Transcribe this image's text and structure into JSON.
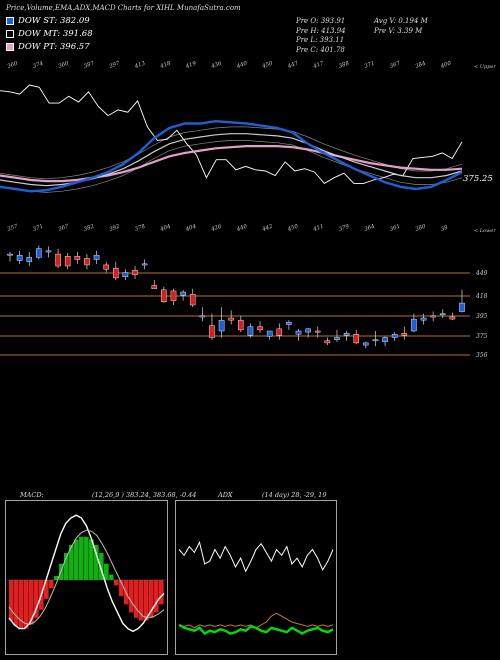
{
  "header": {
    "title": "Price,Volume,EMA,ADX,MACD Charts for XIHL MunafaSutra.com",
    "legend": [
      {
        "label": "DOW ST: 382.09",
        "color": "#1f5fd6"
      },
      {
        "label": "DOW MT: 391.68",
        "color": "#ffffff"
      },
      {
        "label": "DOW PT: 396.57",
        "color": "#e0a0c8"
      }
    ],
    "stats_left": [
      "Pre  O: 393.91",
      "Pre  H: 413.94",
      "Pre  L: 393.11",
      "Pre  C: 401.78"
    ],
    "stats_right": [
      "Avg V: 0.194  M",
      "Pre  V: 3.39  M"
    ]
  },
  "ema_panel": {
    "upper_label": "< Upper",
    "lower_label": "< Lower",
    "price_tag": "375.25",
    "top_ticks": [
      "360",
      "374",
      "360",
      "387",
      "397",
      "413",
      "418",
      "419",
      "436",
      "440",
      "450",
      "447",
      "417",
      "388",
      "371",
      "367",
      "384",
      "400"
    ],
    "bottom_ticks": [
      "357",
      "371",
      "367",
      "382",
      "392",
      "378",
      "404",
      "404",
      "426",
      "440",
      "442",
      "450",
      "411",
      "379",
      "364",
      "361",
      "380",
      "38"
    ]
  },
  "candle_panel": {
    "levels": [
      "449",
      "418",
      "395",
      "375",
      "356"
    ]
  },
  "macd_panel": {
    "label": "MACD:",
    "values": "(12,26,9 ) 383.24,  383.68,  -0.44",
    "adx_label": "ADX",
    "adx_values": "(14 day) 28,  -29,  19"
  },
  "chart_data": [
    {
      "type": "line",
      "title": "",
      "series": [
        {
          "name": "DOW ST",
          "color": "#1f5fd6",
          "values": [
            362,
            360,
            358,
            359,
            362,
            366,
            370,
            375,
            382,
            392,
            405,
            414,
            418,
            418,
            420,
            419,
            418,
            416,
            414,
            410,
            400,
            392,
            385,
            378,
            372,
            366,
            362,
            360,
            362,
            368,
            375
          ]
        },
        {
          "name": "DOW MT",
          "color": "#ffffff",
          "values": [
            368,
            366,
            364,
            363,
            364,
            366,
            369,
            373,
            378,
            385,
            393,
            400,
            404,
            406,
            408,
            409,
            409,
            408,
            407,
            405,
            400,
            394,
            389,
            384,
            380,
            376,
            372,
            370,
            370,
            372,
            376
          ]
        },
        {
          "name": "DOW PT",
          "color": "#e0a0c8",
          "values": [
            372,
            370,
            368,
            367,
            367,
            368,
            370,
            372,
            375,
            379,
            384,
            389,
            392,
            394,
            396,
            397,
            398,
            398,
            398,
            397,
            395,
            392,
            389,
            386,
            383,
            381,
            379,
            378,
            377,
            377,
            378
          ]
        }
      ]
    },
    {
      "type": "candlestick",
      "title": "",
      "ylim": [
        340,
        460
      ],
      "candles": [
        {
          "o": 446,
          "h": 449,
          "l": 440,
          "c": 447
        },
        {
          "o": 441,
          "h": 450,
          "l": 438,
          "c": 446
        },
        {
          "o": 440,
          "h": 449,
          "l": 436,
          "c": 444
        },
        {
          "o": 444,
          "h": 455,
          "l": 442,
          "c": 452
        },
        {
          "o": 449,
          "h": 454,
          "l": 444,
          "c": 450
        },
        {
          "o": 447,
          "h": 452,
          "l": 434,
          "c": 436
        },
        {
          "o": 445,
          "h": 448,
          "l": 433,
          "c": 436
        },
        {
          "o": 445,
          "h": 449,
          "l": 438,
          "c": 442
        },
        {
          "o": 443,
          "h": 447,
          "l": 433,
          "c": 437
        },
        {
          "o": 442,
          "h": 450,
          "l": 438,
          "c": 446
        },
        {
          "o": 437,
          "h": 440,
          "l": 430,
          "c": 433
        },
        {
          "o": 434,
          "h": 440,
          "l": 423,
          "c": 425
        },
        {
          "o": 426,
          "h": 433,
          "l": 423,
          "c": 430
        },
        {
          "o": 432,
          "h": 436,
          "l": 424,
          "c": 428
        },
        {
          "o": 438,
          "h": 442,
          "l": 433,
          "c": 438
        },
        {
          "o": 418,
          "h": 423,
          "l": 415,
          "c": 415
        },
        {
          "o": 414,
          "h": 417,
          "l": 402,
          "c": 403
        },
        {
          "o": 413,
          "h": 415,
          "l": 400,
          "c": 404
        },
        {
          "o": 409,
          "h": 414,
          "l": 404,
          "c": 412
        },
        {
          "o": 410,
          "h": 415,
          "l": 398,
          "c": 400
        },
        {
          "o": 389,
          "h": 398,
          "l": 385,
          "c": 390
        },
        {
          "o": 381,
          "h": 392,
          "l": 368,
          "c": 370
        },
        {
          "o": 376,
          "h": 398,
          "l": 370,
          "c": 386
        },
        {
          "o": 388,
          "h": 395,
          "l": 382,
          "c": 386
        },
        {
          "o": 386,
          "h": 390,
          "l": 375,
          "c": 377
        },
        {
          "o": 372,
          "h": 383,
          "l": 370,
          "c": 380
        },
        {
          "o": 380,
          "h": 385,
          "l": 374,
          "c": 377
        },
        {
          "o": 371,
          "h": 376,
          "l": 368,
          "c": 376
        },
        {
          "o": 378,
          "h": 383,
          "l": 368,
          "c": 372
        },
        {
          "o": 382,
          "h": 386,
          "l": 377,
          "c": 384
        },
        {
          "o": 373,
          "h": 378,
          "l": 367,
          "c": 376
        },
        {
          "o": 375,
          "h": 379,
          "l": 370,
          "c": 378
        },
        {
          "o": 376,
          "h": 380,
          "l": 370,
          "c": 375
        },
        {
          "o": 367,
          "h": 370,
          "l": 363,
          "c": 365
        },
        {
          "o": 368,
          "h": 377,
          "l": 366,
          "c": 370
        },
        {
          "o": 372,
          "h": 376,
          "l": 367,
          "c": 374
        },
        {
          "o": 373,
          "h": 377,
          "l": 364,
          "c": 365
        },
        {
          "o": 363,
          "h": 366,
          "l": 360,
          "c": 365
        },
        {
          "o": 368,
          "h": 376,
          "l": 362,
          "c": 368
        },
        {
          "o": 366,
          "h": 371,
          "l": 362,
          "c": 370
        },
        {
          "o": 370,
          "h": 375,
          "l": 367,
          "c": 373
        },
        {
          "o": 374,
          "h": 380,
          "l": 368,
          "c": 372
        },
        {
          "o": 376,
          "h": 392,
          "l": 375,
          "c": 387
        },
        {
          "o": 386,
          "h": 392,
          "l": 382,
          "c": 388
        },
        {
          "o": 390,
          "h": 394,
          "l": 385,
          "c": 389
        },
        {
          "o": 392,
          "h": 396,
          "l": 388,
          "c": 392
        },
        {
          "o": 389,
          "h": 393,
          "l": 386,
          "c": 387
        },
        {
          "o": 393.91,
          "h": 413.94,
          "l": 393.11,
          "c": 401.78
        }
      ]
    },
    {
      "type": "bar",
      "title": "MACD",
      "values": [
        -30,
        -34,
        -36,
        -36,
        -33,
        -28,
        -22,
        -14,
        -6,
        3,
        12,
        20,
        26,
        30,
        32,
        32,
        30,
        26,
        20,
        12,
        4,
        -4,
        -12,
        -18,
        -24,
        -28,
        -30,
        -30,
        -28,
        -24,
        -18
      ],
      "macd_line": [
        -28,
        -33,
        -36,
        -36,
        -32,
        -24,
        -14,
        -2,
        10,
        22,
        34,
        42,
        46,
        48,
        46,
        40,
        30,
        18,
        6,
        -6,
        -16,
        -24,
        -32,
        -36,
        -38,
        -36,
        -32,
        -26,
        -20,
        -14,
        -10
      ],
      "signal_line": [
        -20,
        -25,
        -29,
        -32,
        -33,
        -31,
        -27,
        -21,
        -13,
        -4,
        6,
        16,
        24,
        31,
        35,
        37,
        36,
        33,
        27,
        20,
        12,
        4,
        -4,
        -12,
        -18,
        -23,
        -27,
        -28,
        -27,
        -25,
        -22
      ]
    },
    {
      "type": "line",
      "title": "ADX",
      "series": [
        {
          "name": "DI+",
          "color": "#ffffff",
          "values": [
            70,
            66,
            72,
            68,
            75,
            60,
            62,
            70,
            64,
            72,
            66,
            58,
            64,
            55,
            62,
            70,
            74,
            68,
            62,
            70,
            66,
            72,
            60,
            64,
            58,
            66,
            70,
            64,
            56,
            62,
            70
          ]
        },
        {
          "name": "ADX",
          "color": "#00dd00",
          "values": [
            18,
            16,
            15,
            14,
            16,
            12,
            14,
            13,
            15,
            14,
            12,
            13,
            15,
            14,
            17,
            16,
            14,
            13,
            16,
            15,
            14,
            13,
            16,
            14,
            12,
            14,
            15,
            16,
            14,
            13,
            15
          ]
        },
        {
          "name": "DI-",
          "color": "#c8781e",
          "values": [
            18,
            17,
            18,
            16,
            18,
            17,
            18,
            17,
            18,
            17,
            18,
            17,
            18,
            17,
            18,
            16,
            18,
            20,
            24,
            26,
            24,
            22,
            20,
            19,
            18,
            17,
            18,
            17,
            18,
            17,
            18
          ]
        }
      ]
    }
  ]
}
